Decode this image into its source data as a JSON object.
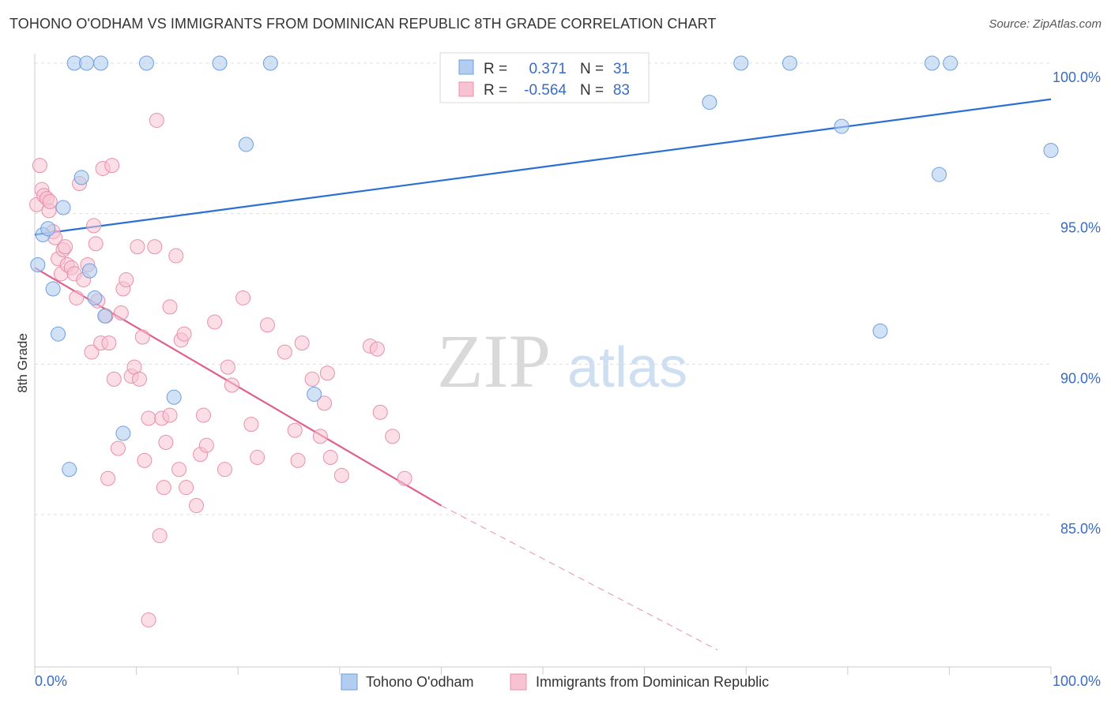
{
  "title": "TOHONO O'ODHAM VS IMMIGRANTS FROM DOMINICAN REPUBLIC 8TH GRADE CORRELATION CHART",
  "source": "Source: ZipAtlas.com",
  "watermark": {
    "zip": "ZIP",
    "atlas": "atlas"
  },
  "colors": {
    "blue_fill": "#b3cdf0",
    "blue_stroke": "#6f9fdc",
    "blue_line": "#2a6fd4",
    "pink_fill": "#f7c3d2",
    "pink_stroke": "#e98fab",
    "pink_line": "#e0608c",
    "grid": "#dddddd",
    "tick_text": "#3a6cc4"
  },
  "legend": {
    "r_label": "R =",
    "n_label": "N =",
    "rows": [
      {
        "r": "0.371",
        "n": "31"
      },
      {
        "r": "-0.564",
        "n": "83"
      }
    ]
  },
  "chart_data": {
    "type": "scatter",
    "title": "TOHONO O'ODHAM VS IMMIGRANTS FROM DOMINICAN REPUBLIC 8TH GRADE CORRELATION CHART",
    "xlabel": "",
    "ylabel": "8th Grade",
    "xlim": [
      0,
      100
    ],
    "ylim": [
      80.5,
      100.5
    ],
    "x_tick_labels": [
      "0.0%",
      "100.0%"
    ],
    "y_ticks": [
      100,
      95,
      90,
      85
    ],
    "y_tick_labels": [
      "100.0%",
      "95.0%",
      "90.0%",
      "85.0%"
    ],
    "grid": true,
    "legend_position": "top-center",
    "series": [
      {
        "name": "Tohono O'odham",
        "color": "#b3cdf0",
        "r": 0.371,
        "n": 31,
        "points": [
          [
            0.3,
            93.3
          ],
          [
            0.8,
            94.3
          ],
          [
            1.3,
            94.5
          ],
          [
            1.8,
            92.5
          ],
          [
            2.3,
            91.0
          ],
          [
            2.8,
            95.2
          ],
          [
            3.4,
            86.5
          ],
          [
            3.9,
            100.0
          ],
          [
            4.6,
            96.2
          ],
          [
            5.1,
            100.0
          ],
          [
            5.4,
            93.1
          ],
          [
            5.9,
            92.2
          ],
          [
            6.5,
            100.0
          ],
          [
            6.9,
            91.6
          ],
          [
            8.7,
            87.7
          ],
          [
            11.0,
            100.0
          ],
          [
            13.7,
            88.9
          ],
          [
            18.2,
            100.0
          ],
          [
            20.8,
            97.3
          ],
          [
            23.2,
            100.0
          ],
          [
            27.5,
            89.0
          ],
          [
            47.5,
            100.0
          ],
          [
            66.4,
            98.7
          ],
          [
            69.5,
            100.0
          ],
          [
            74.3,
            100.0
          ],
          [
            79.4,
            97.9
          ],
          [
            83.2,
            91.1
          ],
          [
            88.3,
            100.0
          ],
          [
            89.0,
            96.3
          ],
          [
            90.1,
            100.0
          ],
          [
            100.0,
            97.1
          ]
        ],
        "trend": {
          "x": [
            0,
            100
          ],
          "y": [
            94.3,
            98.8
          ]
        }
      },
      {
        "name": "Immigrants from Dominican Republic",
        "color": "#f7c3d2",
        "r": -0.564,
        "n": 83,
        "points": [
          [
            0.2,
            95.3
          ],
          [
            0.5,
            96.6
          ],
          [
            0.7,
            95.8
          ],
          [
            0.9,
            95.6
          ],
          [
            1.2,
            95.5
          ],
          [
            1.4,
            95.1
          ],
          [
            1.5,
            95.4
          ],
          [
            1.8,
            94.4
          ],
          [
            2.0,
            94.2
          ],
          [
            2.3,
            93.5
          ],
          [
            2.6,
            93.0
          ],
          [
            2.8,
            93.8
          ],
          [
            3.2,
            93.3
          ],
          [
            3.6,
            93.2
          ],
          [
            3.9,
            93.0
          ],
          [
            4.1,
            92.2
          ],
          [
            4.4,
            96.0
          ],
          [
            4.8,
            92.8
          ],
          [
            5.2,
            93.3
          ],
          [
            5.6,
            90.4
          ],
          [
            5.8,
            94.6
          ],
          [
            6.0,
            94.0
          ],
          [
            6.2,
            92.1
          ],
          [
            6.5,
            90.7
          ],
          [
            6.7,
            96.5
          ],
          [
            7.0,
            91.6
          ],
          [
            7.3,
            90.7
          ],
          [
            7.6,
            96.6
          ],
          [
            7.8,
            89.5
          ],
          [
            8.2,
            87.2
          ],
          [
            8.5,
            91.7
          ],
          [
            8.7,
            92.5
          ],
          [
            9.0,
            92.8
          ],
          [
            9.5,
            89.6
          ],
          [
            9.8,
            89.9
          ],
          [
            10.1,
            93.9
          ],
          [
            10.3,
            89.5
          ],
          [
            10.6,
            90.9
          ],
          [
            10.8,
            86.8
          ],
          [
            11.2,
            88.2
          ],
          [
            11.8,
            93.9
          ],
          [
            12.0,
            98.1
          ],
          [
            12.3,
            84.3
          ],
          [
            12.5,
            88.2
          ],
          [
            12.7,
            85.9
          ],
          [
            12.9,
            87.4
          ],
          [
            13.3,
            88.3
          ],
          [
            13.3,
            91.9
          ],
          [
            13.9,
            93.6
          ],
          [
            14.2,
            86.5
          ],
          [
            14.4,
            90.8
          ],
          [
            14.7,
            91.0
          ],
          [
            14.9,
            85.9
          ],
          [
            15.9,
            85.3
          ],
          [
            16.3,
            87.0
          ],
          [
            16.6,
            88.3
          ],
          [
            16.9,
            87.3
          ],
          [
            17.7,
            91.4
          ],
          [
            18.7,
            86.5
          ],
          [
            19.0,
            89.9
          ],
          [
            19.4,
            89.3
          ],
          [
            20.5,
            92.2
          ],
          [
            21.3,
            88.0
          ],
          [
            21.9,
            86.9
          ],
          [
            22.9,
            91.3
          ],
          [
            24.6,
            90.4
          ],
          [
            25.6,
            87.8
          ],
          [
            25.9,
            86.8
          ],
          [
            26.3,
            90.7
          ],
          [
            27.3,
            89.5
          ],
          [
            28.1,
            87.6
          ],
          [
            28.5,
            88.7
          ],
          [
            28.8,
            89.7
          ],
          [
            29.1,
            86.9
          ],
          [
            30.2,
            86.3
          ],
          [
            33.0,
            90.6
          ],
          [
            33.7,
            90.5
          ],
          [
            34.0,
            88.4
          ],
          [
            35.2,
            87.6
          ],
          [
            36.4,
            86.2
          ],
          [
            11.2,
            81.5
          ],
          [
            7.2,
            86.2
          ],
          [
            3.0,
            93.9
          ]
        ],
        "trend": {
          "x": [
            0,
            40
          ],
          "y": [
            93.2,
            85.3
          ]
        },
        "trend_extension": {
          "x": [
            40,
            67.2
          ],
          "y": [
            85.3,
            80.5
          ]
        }
      }
    ]
  }
}
